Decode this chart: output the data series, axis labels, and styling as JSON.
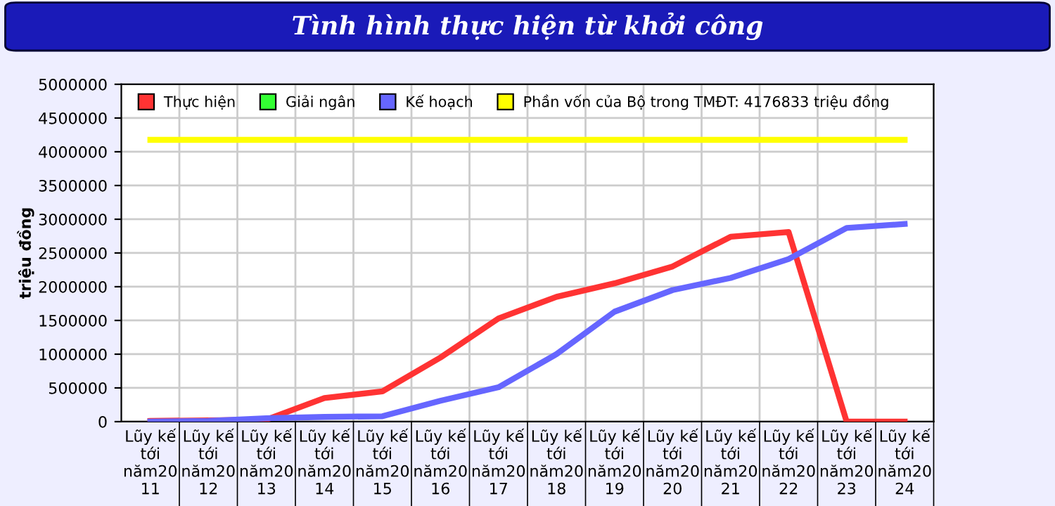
{
  "chart_data": {
    "type": "line",
    "title": "Tình hình thực hiện từ khởi công",
    "ylabel": "triệu đồng",
    "categories": [
      "Lũy kế\ntới\nnăm20\n11",
      "Lũy kế\ntới\nnăm20\n12",
      "Lũy kế\ntới\nnăm20\n13",
      "Lũy kế\ntới\nnăm20\n14",
      "Lũy kế\ntới\nnăm20\n15",
      "Lũy kế\ntới\nnăm20\n16",
      "Lũy kế\ntới\nnăm20\n17",
      "Lũy kế\ntới\nnăm20\n18",
      "Lũy kế\ntới\nnăm20\n19",
      "Lũy kế\ntới\nnăm20\n20",
      "Lũy kế\ntới\nnăm20\n21",
      "Lũy kế\ntới\nnăm20\n22",
      "Lũy kế\ntới\nnăm20\n23",
      "Lũy kế\ntới\nnăm20\n24"
    ],
    "series": [
      {
        "name": "Thực hiện",
        "color": "#ff3333",
        "values": [
          10000,
          20000,
          30000,
          350000,
          450000,
          950000,
          1530000,
          1850000,
          2050000,
          2300000,
          2740000,
          2810000,
          0,
          0
        ]
      },
      {
        "name": "Giải ngân",
        "color": "#33ff33",
        "values": [
          null,
          null,
          null,
          null,
          null,
          null,
          null,
          null,
          null,
          null,
          null,
          null,
          null,
          null
        ]
      },
      {
        "name": "Kế hoạch",
        "color": "#6666ff",
        "values": [
          0,
          10000,
          50000,
          70000,
          80000,
          310000,
          510000,
          1000000,
          1630000,
          1950000,
          2130000,
          2410000,
          2870000,
          2930000
        ]
      },
      {
        "name": "Phần vốn của Bộ trong TMĐT: 4176833 triệu đồng",
        "color": "#ffff00",
        "values": [
          4176833,
          4176833,
          4176833,
          4176833,
          4176833,
          4176833,
          4176833,
          4176833,
          4176833,
          4176833,
          4176833,
          4176833,
          4176833,
          4176833
        ]
      }
    ],
    "ylim": [
      0,
      5000000
    ],
    "yticks": [
      0,
      500000,
      1000000,
      1500000,
      2000000,
      2500000,
      3000000,
      3500000,
      4000000,
      4500000,
      5000000
    ],
    "grid": true,
    "legend": "top",
    "marker": "none",
    "line_style": "solid"
  }
}
